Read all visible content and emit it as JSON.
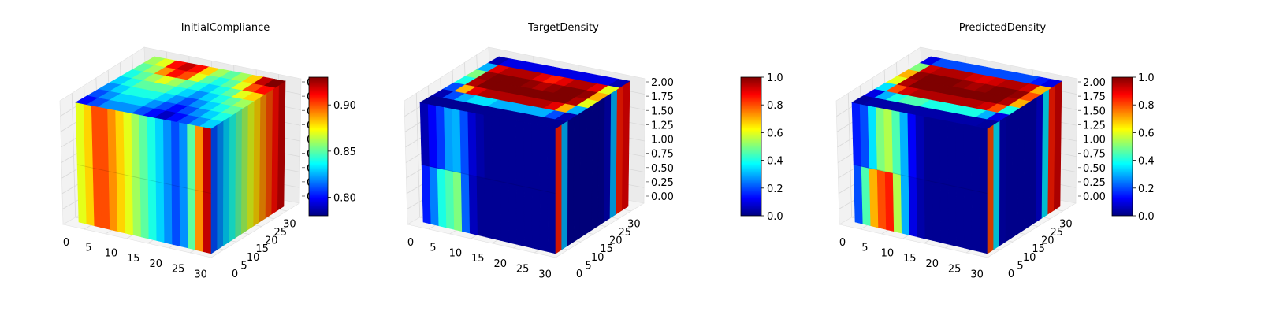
{
  "colormap": [
    "#00007f",
    "#0000ff",
    "#007fff",
    "#00ffff",
    "#7fff7f",
    "#ffff00",
    "#ff7f00",
    "#ff0000",
    "#7f0000"
  ],
  "chart_data": [
    {
      "type": "3d-voxel",
      "title": "InitialCompliance",
      "x_ticks": [
        "0",
        "5",
        "10",
        "15",
        "20",
        "25",
        "30"
      ],
      "y_ticks": [
        "0",
        "5",
        "10",
        "15",
        "20",
        "25",
        "30"
      ],
      "z_ticks": [
        "0",
        "0",
        "0",
        "0",
        "0",
        "0",
        "0",
        "0",
        "0"
      ],
      "xlim": [
        0,
        32
      ],
      "ylim": [
        0,
        32
      ],
      "zlim": [
        0,
        2
      ],
      "colorbar": {
        "min": 0.78,
        "max": 0.93,
        "ticks": [
          "0.80",
          "0.85",
          "0.90"
        ]
      },
      "front_columns": [
        0.87,
        0.88,
        0.9,
        0.9,
        0.89,
        0.88,
        0.87,
        0.86,
        0.85,
        0.84,
        0.83,
        0.82,
        0.81,
        0.82,
        0.85,
        0.89,
        0.92
      ],
      "side_columns": [
        0.92,
        0.91,
        0.9,
        0.89,
        0.88,
        0.87,
        0.86,
        0.85,
        0.84,
        0.83,
        0.82,
        0.81
      ],
      "top_rows": [
        [
          0.86,
          0.87,
          0.91,
          0.92,
          0.91,
          0.88,
          0.86,
          0.85,
          0.86,
          0.88,
          0.92,
          0.93
        ],
        [
          0.85,
          0.86,
          0.89,
          0.91,
          0.9,
          0.87,
          0.85,
          0.84,
          0.85,
          0.87,
          0.9,
          0.91
        ],
        [
          0.84,
          0.85,
          0.86,
          0.87,
          0.86,
          0.85,
          0.84,
          0.83,
          0.84,
          0.85,
          0.87,
          0.88
        ],
        [
          0.83,
          0.84,
          0.85,
          0.85,
          0.85,
          0.84,
          0.83,
          0.82,
          0.83,
          0.84,
          0.85,
          0.86
        ],
        [
          0.82,
          0.83,
          0.84,
          0.84,
          0.84,
          0.83,
          0.82,
          0.81,
          0.82,
          0.83,
          0.84,
          0.85
        ],
        [
          0.81,
          0.82,
          0.83,
          0.83,
          0.83,
          0.82,
          0.81,
          0.8,
          0.81,
          0.82,
          0.83,
          0.84
        ],
        [
          0.8,
          0.81,
          0.82,
          0.82,
          0.82,
          0.81,
          0.8,
          0.79,
          0.8,
          0.81,
          0.82,
          0.83
        ]
      ]
    },
    {
      "type": "3d-voxel",
      "title": "TargetDensity",
      "x_ticks": [
        "0",
        "5",
        "10",
        "15",
        "20",
        "25",
        "30"
      ],
      "y_ticks": [
        "0",
        "5",
        "10",
        "15",
        "20",
        "25",
        "30"
      ],
      "z_ticks": [
        "0.00",
        "0.25",
        "0.50",
        "0.75",
        "1.00",
        "1.25",
        "1.50",
        "1.75",
        "2.00"
      ],
      "xlim": [
        0,
        32
      ],
      "ylim": [
        0,
        32
      ],
      "zlim": [
        0,
        2
      ],
      "colorbar": {
        "min": 0.0,
        "max": 1.0,
        "ticks": [
          "0.0",
          "0.2",
          "0.4",
          "0.6",
          "0.8",
          "1.0"
        ]
      },
      "front_columns": [
        0.05,
        0.12,
        0.18,
        0.28,
        0.3,
        0.2,
        0.08,
        0.04,
        0.02,
        0.02,
        0.02,
        0.02,
        0.02,
        0.02,
        0.02,
        0.02,
        0.02
      ],
      "front_lower_columns": [
        0.15,
        0.25,
        0.4,
        0.45,
        0.5,
        0.22,
        0.06,
        0.02,
        0.02,
        0.02,
        0.02,
        0.02,
        0.02,
        0.02,
        0.02,
        0.02,
        0.02
      ],
      "side_columns": [
        0.9,
        0.85,
        0.3,
        0.05,
        0.02,
        0.02,
        0.02,
        0.02,
        0.02,
        0.02,
        0.3,
        0.85
      ],
      "top_rows": [
        [
          0.05,
          0.1,
          0.1,
          0.1,
          0.1,
          0.1,
          0.1,
          0.1,
          0.1,
          0.1,
          0.1,
          0.05
        ],
        [
          0.3,
          0.9,
          0.95,
          0.95,
          0.95,
          0.9,
          0.85,
          0.9,
          0.95,
          0.95,
          0.9,
          0.6
        ],
        [
          0.5,
          0.98,
          1.0,
          1.0,
          1.0,
          0.98,
          0.95,
          0.98,
          1.0,
          1.0,
          0.98,
          0.7
        ],
        [
          0.4,
          0.95,
          1.0,
          1.0,
          1.0,
          1.0,
          1.0,
          1.0,
          1.0,
          1.0,
          0.95,
          0.6
        ],
        [
          0.2,
          0.7,
          0.9,
          0.95,
          0.95,
          0.95,
          0.95,
          0.95,
          0.95,
          0.9,
          0.7,
          0.3
        ],
        [
          0.05,
          0.2,
          0.3,
          0.35,
          0.35,
          0.3,
          0.3,
          0.3,
          0.3,
          0.3,
          0.2,
          0.05
        ],
        [
          0.02,
          0.02,
          0.02,
          0.02,
          0.02,
          0.02,
          0.02,
          0.02,
          0.02,
          0.02,
          0.02,
          0.02
        ]
      ]
    },
    {
      "type": "3d-voxel",
      "title": "PredictedDensity",
      "x_ticks": [
        "0",
        "5",
        "10",
        "15",
        "20",
        "25",
        "30"
      ],
      "y_ticks": [
        "0",
        "5",
        "10",
        "15",
        "20",
        "25",
        "30"
      ],
      "z_ticks": [
        "0.00",
        "0.25",
        "0.50",
        "0.75",
        "1.00",
        "1.25",
        "1.50",
        "1.75",
        "2.00"
      ],
      "xlim": [
        0,
        32
      ],
      "ylim": [
        0,
        32
      ],
      "zlim": [
        0,
        2
      ],
      "colorbar": {
        "min": 0.0,
        "max": 1.0,
        "ticks": [
          "0.0",
          "0.2",
          "0.4",
          "0.6",
          "0.8",
          "1.0"
        ]
      },
      "front_columns": [
        0.15,
        0.2,
        0.35,
        0.5,
        0.55,
        0.45,
        0.3,
        0.12,
        0.05,
        0.02,
        0.02,
        0.02,
        0.02,
        0.02,
        0.02,
        0.02,
        0.02
      ],
      "front_lower_columns": [
        0.2,
        0.45,
        0.7,
        0.8,
        0.85,
        0.55,
        0.3,
        0.1,
        0.04,
        0.02,
        0.02,
        0.02,
        0.02,
        0.02,
        0.02,
        0.02,
        0.02
      ],
      "side_columns": [
        0.92,
        0.85,
        0.35,
        0.08,
        0.04,
        0.04,
        0.04,
        0.04,
        0.04,
        0.05,
        0.35,
        0.8
      ],
      "top_rows": [
        [
          0.1,
          0.2,
          0.2,
          0.2,
          0.2,
          0.2,
          0.2,
          0.2,
          0.2,
          0.2,
          0.15,
          0.1
        ],
        [
          0.5,
          0.92,
          0.95,
          0.95,
          0.95,
          0.92,
          0.9,
          0.92,
          0.95,
          0.95,
          0.92,
          0.7
        ],
        [
          0.7,
          0.98,
          1.0,
          1.0,
          1.0,
          0.98,
          0.96,
          0.98,
          1.0,
          1.0,
          0.98,
          0.8
        ],
        [
          0.6,
          0.95,
          1.0,
          1.0,
          1.0,
          1.0,
          1.0,
          1.0,
          1.0,
          1.0,
          0.95,
          0.7
        ],
        [
          0.35,
          0.8,
          0.92,
          0.95,
          0.95,
          0.95,
          0.95,
          0.95,
          0.95,
          0.92,
          0.8,
          0.4
        ],
        [
          0.1,
          0.3,
          0.4,
          0.45,
          0.45,
          0.4,
          0.4,
          0.4,
          0.4,
          0.4,
          0.3,
          0.1
        ],
        [
          0.03,
          0.04,
          0.04,
          0.04,
          0.04,
          0.04,
          0.04,
          0.04,
          0.04,
          0.04,
          0.04,
          0.03
        ]
      ]
    }
  ]
}
